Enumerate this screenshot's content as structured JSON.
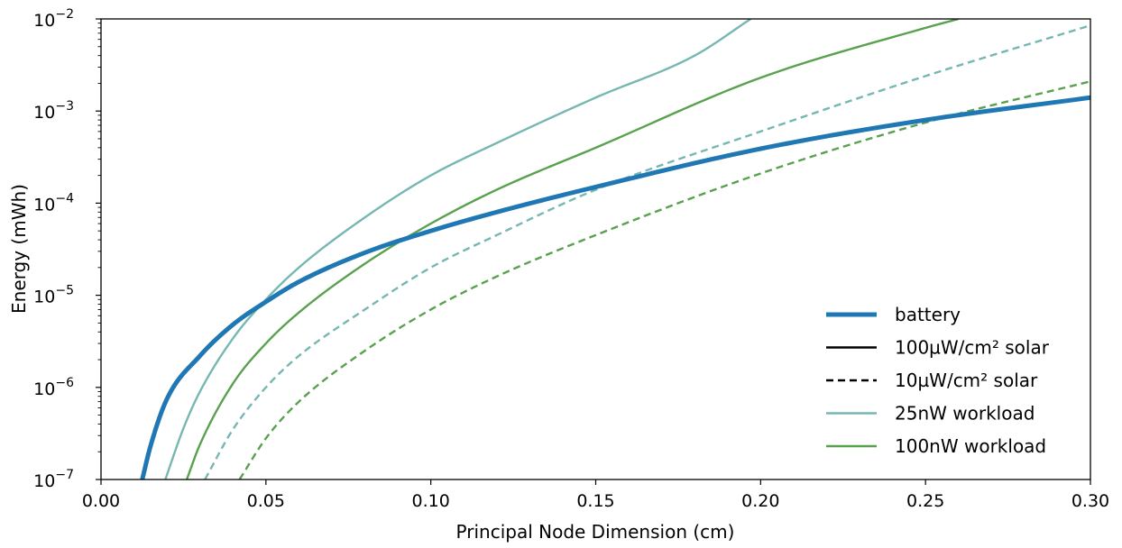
{
  "chart_data": {
    "type": "line",
    "xlabel": "Principal Node Dimension (cm)",
    "ylabel": "Energy (mWh)",
    "xlim": [
      0.0,
      0.3
    ],
    "ylim": [
      1e-07,
      0.01
    ],
    "yscale": "log",
    "grid": false,
    "legend_position": "lower-right",
    "x_ticks": [
      "0.00",
      "0.05",
      "0.10",
      "0.15",
      "0.20",
      "0.25",
      "0.30"
    ],
    "x_tick_values": [
      0.0,
      0.05,
      0.1,
      0.15,
      0.2,
      0.25,
      0.3
    ],
    "y_ticks": [
      {
        "base": "10",
        "exp": "−7",
        "value": 1e-07
      },
      {
        "base": "10",
        "exp": "−6",
        "value": 1e-06
      },
      {
        "base": "10",
        "exp": "−5",
        "value": 1e-05
      },
      {
        "base": "10",
        "exp": "−4",
        "value": 0.0001
      },
      {
        "base": "10",
        "exp": "−3",
        "value": 0.001
      },
      {
        "base": "10",
        "exp": "−2",
        "value": 0.01
      }
    ],
    "series": [
      {
        "name": "battery",
        "color": "#1f77b4",
        "style": "solid",
        "width": "thick",
        "x": [
          0.0125,
          0.015,
          0.02,
          0.03,
          0.04,
          0.05,
          0.06,
          0.08,
          0.1,
          0.12,
          0.15,
          0.2,
          0.25,
          0.3
        ],
        "y": [
          1e-07,
          2.3e-07,
          7.5e-07,
          2.2e-06,
          4.8e-06,
          8.5e-06,
          1.4e-05,
          2.9e-05,
          5e-05,
          8e-05,
          0.00015,
          0.00039,
          0.0008,
          0.0014
        ]
      },
      {
        "name": "25nW workload · 100µW/cm² solar",
        "color": "#76b7b2",
        "style": "solid",
        "width": "normal",
        "x": [
          0.0195,
          0.025,
          0.03,
          0.04,
          0.05,
          0.06,
          0.08,
          0.1,
          0.12,
          0.15,
          0.18,
          0.197
        ],
        "y": [
          1e-07,
          3.6e-07,
          9e-07,
          3.4e-06,
          9e-06,
          2e-05,
          7e-05,
          0.0002,
          0.00045,
          0.0014,
          0.004,
          0.01
        ]
      },
      {
        "name": "25nW workload · 10µW/cm² solar",
        "color": "#76b7b2",
        "style": "dashed",
        "width": "normal",
        "x": [
          0.0315,
          0.04,
          0.05,
          0.06,
          0.08,
          0.1,
          0.12,
          0.15,
          0.2,
          0.25,
          0.3
        ],
        "y": [
          1e-07,
          3.5e-07,
          1e-06,
          2.2e-06,
          7e-06,
          2e-05,
          4.5e-05,
          0.00014,
          0.0006,
          0.0024,
          0.0085
        ]
      },
      {
        "name": "100nW workload · 100µW/cm² solar",
        "color": "#59a14f",
        "style": "solid",
        "width": "normal",
        "x": [
          0.026,
          0.03,
          0.04,
          0.05,
          0.06,
          0.08,
          0.1,
          0.12,
          0.15,
          0.2,
          0.25,
          0.26
        ],
        "y": [
          1e-07,
          2.4e-07,
          1.1e-06,
          3e-06,
          6.5e-06,
          2.2e-05,
          6e-05,
          0.00014,
          0.0004,
          0.0023,
          0.008,
          0.01
        ]
      },
      {
        "name": "100nW workload · 10µW/cm² solar",
        "color": "#59a14f",
        "style": "dashed",
        "width": "normal",
        "x": [
          0.042,
          0.05,
          0.06,
          0.08,
          0.1,
          0.12,
          0.15,
          0.2,
          0.25,
          0.3
        ],
        "y": [
          1e-07,
          2.8e-07,
          7e-07,
          2.5e-06,
          7e-06,
          1.6e-05,
          4.5e-05,
          0.00021,
          0.00075,
          0.0021
        ]
      }
    ],
    "legend": [
      {
        "label": "battery",
        "color": "#1f77b4",
        "style": "solid",
        "width": "thick"
      },
      {
        "label": "100µW/cm² solar",
        "color": "#000000",
        "style": "solid",
        "width": "normal"
      },
      {
        "label": "10µW/cm² solar",
        "color": "#000000",
        "style": "dashed",
        "width": "normal"
      },
      {
        "label": "25nW workload",
        "color": "#76b7b2",
        "style": "solid",
        "width": "normal"
      },
      {
        "label": "100nW workload",
        "color": "#59a14f",
        "style": "solid",
        "width": "normal"
      }
    ]
  }
}
